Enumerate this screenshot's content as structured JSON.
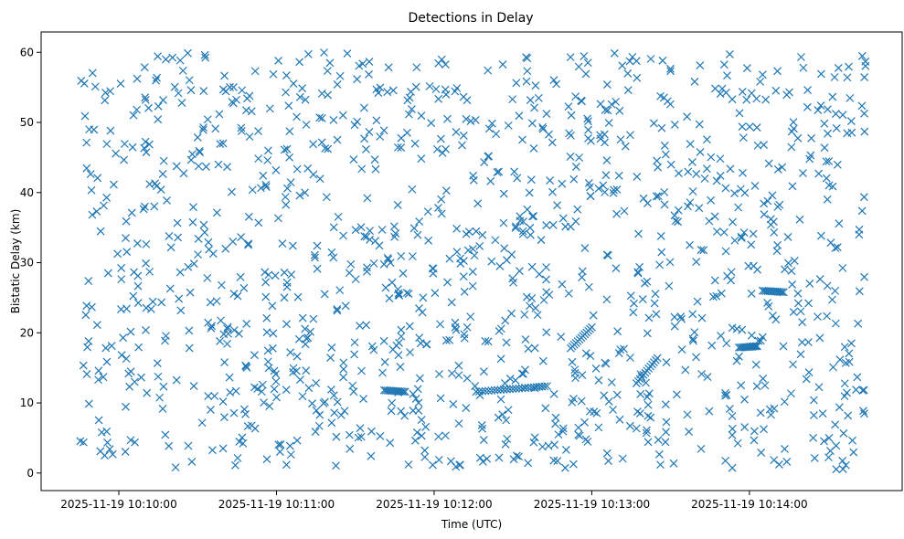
{
  "chart_data": {
    "type": "scatter",
    "title": "Detections in Delay",
    "xlabel": "Time (UTC)",
    "ylabel": "Bistatic Delay (km)",
    "marker": "x",
    "color": "#1f77b4",
    "grid": false,
    "legend": "none",
    "xlim": [
      "2025-11-19 10:09:36",
      "2025-11-19 10:14:55"
    ],
    "ylim": [
      -2.5,
      62.9
    ],
    "x_ticks": [
      "2025-11-19 10:10:00",
      "2025-11-19 10:11:00",
      "2025-11-19 10:12:00",
      "2025-11-19 10:13:00",
      "2025-11-19 10:14:00"
    ],
    "y_ticks": [
      0,
      10,
      20,
      30,
      40,
      50,
      60
    ],
    "x_range": [
      "2025-11-19 10:09:45",
      "2025-11-19 10:14:45"
    ],
    "y_range": [
      0.5,
      60.0
    ],
    "track_series": [
      {
        "x": [
          "2025-11-19 10:12:16",
          "2025-11-19 10:12:23",
          "2025-11-19 10:12:30",
          "2025-11-19 10:12:37",
          "2025-11-19 10:12:43"
        ],
        "y": [
          11.6,
          11.8,
          12.0,
          12.2,
          12.4
        ]
      },
      {
        "x": [
          "2025-11-19 10:11:41",
          "2025-11-19 10:11:45",
          "2025-11-19 10:11:49"
        ],
        "y": [
          11.8,
          11.7,
          11.6
        ]
      },
      {
        "x": [
          "2025-11-19 10:14:05",
          "2025-11-19 10:14:09",
          "2025-11-19 10:14:13"
        ],
        "y": [
          26.0,
          25.9,
          25.8
        ]
      },
      {
        "x": [
          "2025-11-19 10:13:56",
          "2025-11-19 10:14:00",
          "2025-11-19 10:14:03"
        ],
        "y": [
          17.9,
          18.0,
          18.1
        ]
      },
      {
        "x": [
          "2025-11-19 10:13:17",
          "2025-11-19 10:13:21",
          "2025-11-19 10:13:25"
        ],
        "y": [
          12.8,
          14.6,
          16.4
        ]
      },
      {
        "x": [
          "2025-11-19 10:12:52",
          "2025-11-19 10:12:56",
          "2025-11-19 10:13:00"
        ],
        "y": [
          17.8,
          19.3,
          20.8
        ]
      }
    ],
    "scatter_count": 1250,
    "scatter_seed": 20251119
  }
}
